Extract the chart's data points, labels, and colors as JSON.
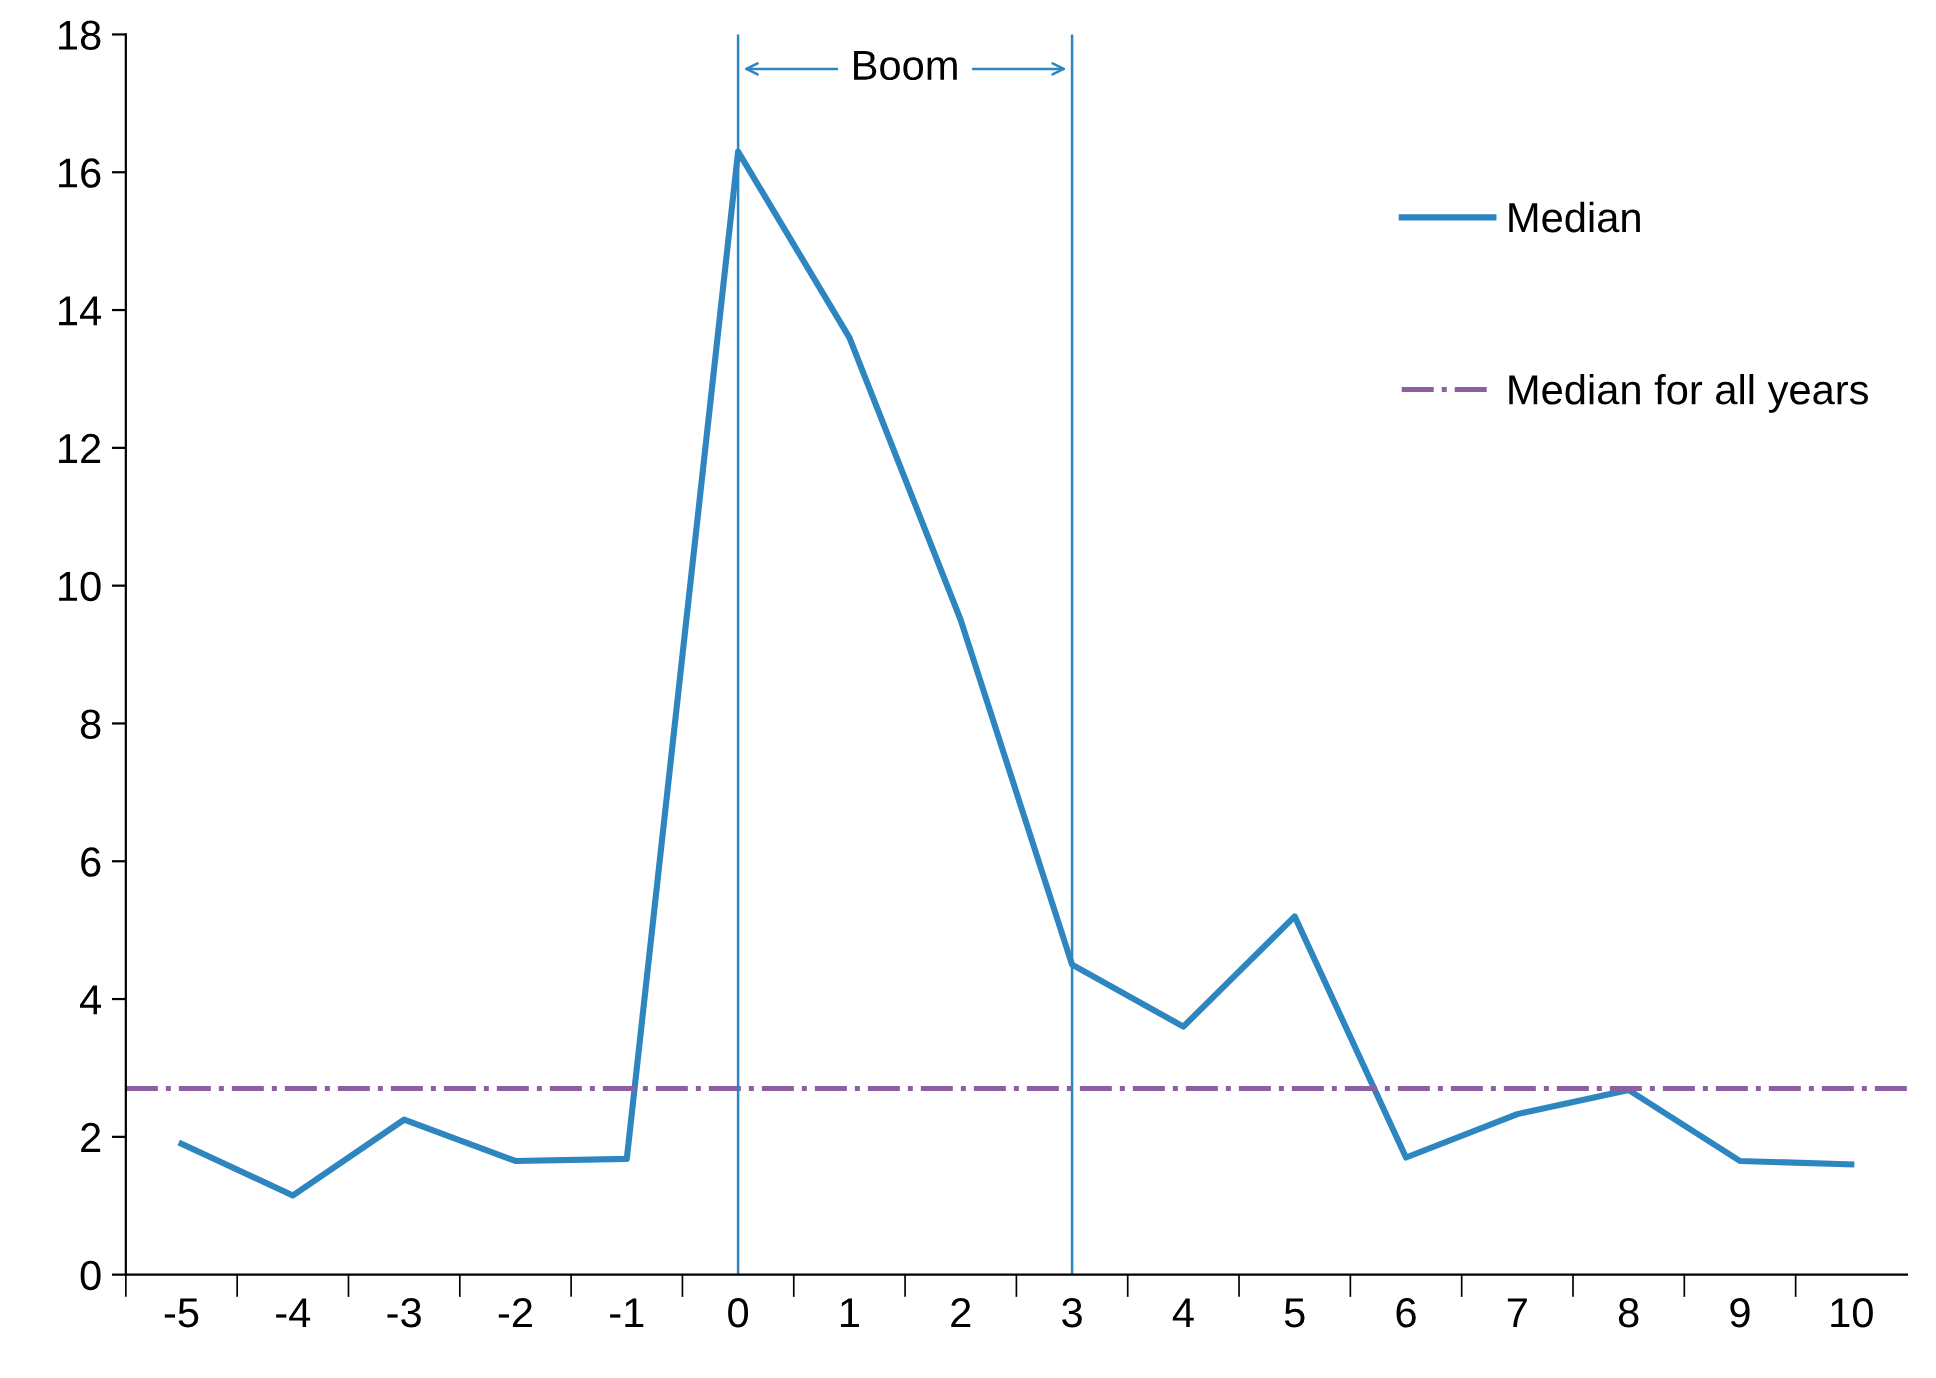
{
  "chart_data": {
    "type": "line",
    "categories": [
      "-5",
      "-4",
      "-3",
      "-2",
      "-1",
      "0",
      "1",
      "2",
      "3",
      "4",
      "5",
      "6",
      "7",
      "8",
      "9",
      "10"
    ],
    "series": [
      {
        "name": "Median",
        "color": "#2e86c1",
        "values": [
          1.9,
          1.15,
          2.25,
          1.65,
          1.68,
          16.3,
          13.6,
          9.5,
          4.5,
          3.6,
          5.2,
          1.7,
          2.33,
          2.68,
          1.65,
          1.6
        ]
      }
    ],
    "ylim": [
      0,
      18
    ],
    "yticks": [
      0,
      2,
      4,
      6,
      8,
      10,
      12,
      14,
      16,
      18
    ],
    "ref_lines": [
      {
        "axis": "y",
        "value": 2.7,
        "label": "Median for all years",
        "color": "#8e5ea2",
        "line_style": "dashed"
      },
      {
        "axis": "x",
        "value": "0",
        "color": "#2e86c1",
        "line_style": "solid"
      },
      {
        "axis": "x",
        "value": "3",
        "color": "#2e86c1",
        "line_style": "solid"
      }
    ],
    "annotations": [
      "Boom"
    ],
    "legend": "right",
    "grid": false,
    "marker": "none",
    "line_style": "solid"
  }
}
